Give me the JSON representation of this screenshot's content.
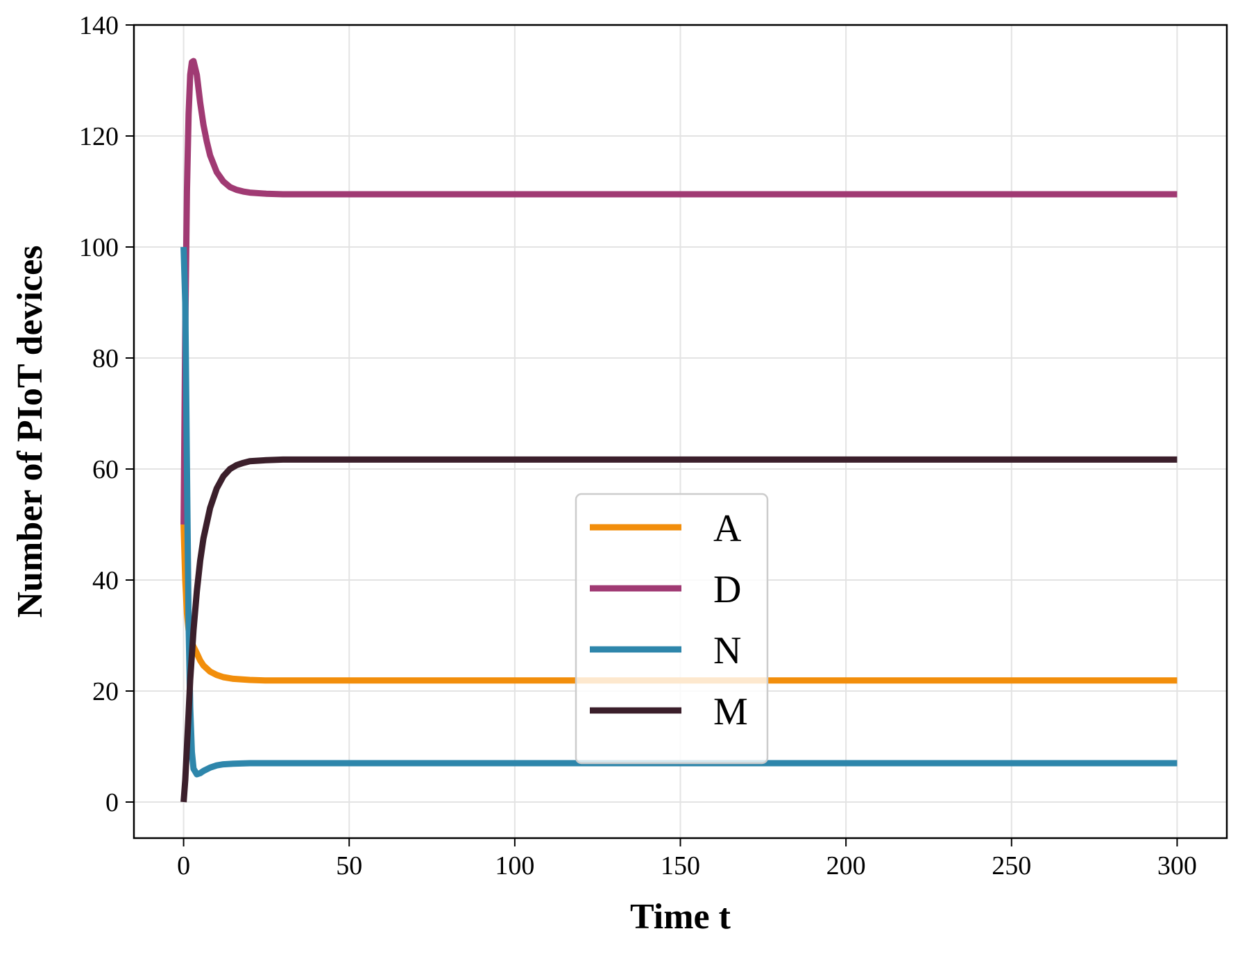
{
  "chart_data": {
    "type": "line",
    "title": "",
    "xlabel": "Time t",
    "ylabel": "Number of PIoT devices",
    "xlim": [
      -15,
      315
    ],
    "ylim": [
      -6.5,
      140
    ],
    "xticks": [
      0,
      50,
      100,
      150,
      200,
      250,
      300
    ],
    "yticks": [
      0,
      20,
      40,
      60,
      80,
      100,
      120,
      140
    ],
    "grid": true,
    "legend": {
      "placement": "center-bottom"
    },
    "series": [
      {
        "name": "A",
        "color": "#F28E0B",
        "x": [
          0,
          0.5,
          1,
          1.5,
          2,
          3,
          4,
          5,
          6,
          8,
          10,
          12,
          15,
          20,
          25,
          30,
          40,
          60,
          100,
          150,
          200,
          250,
          300
        ],
        "y": [
          50,
          40,
          34,
          31,
          29.5,
          28,
          26.8,
          25.5,
          24.6,
          23.5,
          22.9,
          22.5,
          22.2,
          22.0,
          21.9,
          21.9,
          21.9,
          21.9,
          21.9,
          21.9,
          21.9,
          21.9,
          21.9
        ]
      },
      {
        "name": "D",
        "color": "#A03A73",
        "x": [
          0,
          0.5,
          1,
          1.5,
          2,
          2.5,
          3,
          4,
          5,
          6,
          7,
          8,
          10,
          12,
          14,
          16,
          18,
          20,
          25,
          30,
          40,
          60,
          100,
          150,
          200,
          250,
          300
        ],
        "y": [
          50,
          85,
          110,
          124,
          131,
          133.3,
          133.5,
          131,
          126,
          122,
          119,
          116.5,
          113.5,
          111.8,
          110.8,
          110.3,
          110.0,
          109.8,
          109.6,
          109.5,
          109.5,
          109.5,
          109.5,
          109.5,
          109.5,
          109.5,
          109.5
        ]
      },
      {
        "name": "N",
        "color": "#2E86AB",
        "x": [
          0,
          0.5,
          1,
          1.5,
          2,
          2.5,
          3,
          4,
          5,
          6,
          8,
          10,
          12,
          15,
          20,
          25,
          30,
          40,
          60,
          100,
          150,
          200,
          250,
          300
        ],
        "y": [
          100,
          90,
          60,
          32,
          17,
          9,
          6,
          5,
          5.2,
          5.6,
          6.2,
          6.6,
          6.8,
          6.9,
          7.0,
          7.0,
          7.0,
          7.0,
          7.0,
          7.0,
          7.0,
          7.0,
          7.0,
          7.0
        ]
      },
      {
        "name": "M",
        "color": "#3B1F2B",
        "x": [
          0,
          0.5,
          1,
          1.5,
          2,
          3,
          4,
          5,
          6,
          8,
          10,
          12,
          14,
          16,
          18,
          20,
          25,
          30,
          40,
          60,
          100,
          150,
          200,
          250,
          300
        ],
        "y": [
          0,
          4,
          10,
          16,
          22,
          31,
          38,
          43.5,
          47.5,
          53,
          56.5,
          58.7,
          60.0,
          60.7,
          61.1,
          61.4,
          61.6,
          61.7,
          61.7,
          61.7,
          61.7,
          61.7,
          61.7,
          61.7,
          61.7
        ]
      }
    ]
  }
}
